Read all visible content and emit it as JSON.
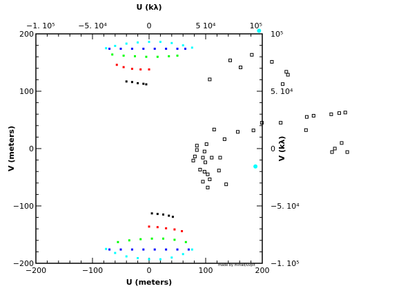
{
  "chart_data": [
    {
      "type": "scatter",
      "xlabel": "U (meters)",
      "ylabel": "V (meters)",
      "x2label": "U (kλ)",
      "y2label": "V (kλ)",
      "xlim": [
        -200,
        200
      ],
      "ylim": [
        -200,
        200
      ],
      "x_ticks": [
        -200,
        -100,
        0,
        100,
        200
      ],
      "y_ticks": [
        -200,
        -100,
        0,
        100,
        200
      ],
      "x_tick_labels": [
        "−200",
        "−100",
        "0",
        "100",
        "200"
      ],
      "y_tick_labels": [
        "−200",
        "−100",
        "0",
        "100",
        "200"
      ],
      "x2lim": [
        -100000,
        100000
      ],
      "y2lim": [
        -100000,
        100000
      ],
      "x2_ticks": [
        -100000,
        -50000,
        0,
        50000,
        100000
      ],
      "y2_ticks": [
        -100000,
        -50000,
        0,
        50000,
        100000
      ],
      "x2_tick_labels": [
        "−1. 10⁵",
        "−5. 10⁴",
        "0",
        "5 10⁴",
        "10⁵"
      ],
      "y2_tick_labels": [
        "−1. 10⁵",
        "−5. 10⁴",
        "0",
        "5. 10⁴",
        "10⁵"
      ],
      "credit": "made by miriad/uvplt",
      "grid": false,
      "series": [
        {
          "color": "#00ffff",
          "points": [
            [
              -76,
              175
            ],
            [
              -60,
              179
            ],
            [
              -40,
              183
            ],
            [
              -20,
              185
            ],
            [
              0,
              186
            ],
            [
              20,
              186
            ],
            [
              40,
              184
            ],
            [
              60,
              180
            ],
            [
              76,
              176
            ],
            [
              -76,
              -175
            ],
            [
              -60,
              -182
            ],
            [
              -40,
              -188
            ],
            [
              -20,
              -191
            ],
            [
              0,
              -193
            ],
            [
              20,
              -193
            ],
            [
              40,
              -190
            ],
            [
              60,
              -184
            ],
            [
              76,
              -176
            ]
          ]
        },
        {
          "color": "#0000ff",
          "points": [
            [
              -70,
              174
            ],
            [
              -50,
              174
            ],
            [
              -30,
              174
            ],
            [
              -10,
              174
            ],
            [
              10,
              174
            ],
            [
              30,
              174
            ],
            [
              50,
              174
            ],
            [
              64,
              174
            ],
            [
              -70,
              -176
            ],
            [
              -50,
              -176
            ],
            [
              -30,
              -176
            ],
            [
              -10,
              -176
            ],
            [
              10,
              -176
            ],
            [
              30,
              -176
            ],
            [
              50,
              -176
            ],
            [
              70,
              -176
            ]
          ]
        },
        {
          "color": "#00ff00",
          "points": [
            [
              -65,
              164
            ],
            [
              -45,
              162
            ],
            [
              -25,
              161
            ],
            [
              -5,
              160
            ],
            [
              15,
              160
            ],
            [
              35,
              161
            ],
            [
              50,
              162
            ],
            [
              -55,
              -163
            ],
            [
              -35,
              -160
            ],
            [
              -15,
              -158
            ],
            [
              5,
              -157
            ],
            [
              25,
              -157
            ],
            [
              45,
              -159
            ],
            [
              65,
              -163
            ]
          ]
        },
        {
          "color": "#ff0000",
          "points": [
            [
              -57,
              146
            ],
            [
              -45,
              142
            ],
            [
              -30,
              139
            ],
            [
              -15,
              138
            ],
            [
              0,
              138
            ],
            [
              0,
              -136
            ],
            [
              15,
              -137
            ],
            [
              30,
              -139
            ],
            [
              45,
              -141
            ],
            [
              58,
              -144
            ]
          ]
        },
        {
          "color": "#000000",
          "points": [
            [
              -40,
              117
            ],
            [
              -30,
              116
            ],
            [
              -20,
              114
            ],
            [
              -10,
              113
            ],
            [
              -5,
              112
            ],
            [
              5,
              -113
            ],
            [
              15,
              -114
            ],
            [
              25,
              -115
            ],
            [
              35,
              -117
            ],
            [
              42,
              -119
            ]
          ]
        }
      ]
    },
    {
      "type": "scatter",
      "series": [
        {
          "color": "#00ffff",
          "points": [
            [
              0.646,
              0.895
            ],
            [
              0.637,
              0.432
            ]
          ]
        },
        {
          "color": "#000000",
          "points": [
            [
              0.574,
              0.794
            ],
            [
              0.628,
              0.813
            ],
            [
              0.678,
              0.789
            ],
            [
              0.714,
              0.755
            ],
            [
              0.718,
              0.745
            ],
            [
              0.6,
              0.77
            ],
            [
              0.705,
              0.713
            ],
            [
              0.523,
              0.729
            ],
            [
              0.7,
              0.581
            ],
            [
              0.653,
              0.581
            ],
            [
              0.765,
              0.601
            ],
            [
              0.782,
              0.605
            ],
            [
              0.826,
              0.61
            ],
            [
              0.846,
              0.614
            ],
            [
              0.861,
              0.616
            ],
            [
              0.593,
              0.55
            ],
            [
              0.632,
              0.555
            ],
            [
              0.534,
              0.558
            ],
            [
              0.56,
              0.525
            ],
            [
              0.515,
              0.508
            ],
            [
              0.491,
              0.503
            ],
            [
              0.491,
              0.488
            ],
            [
              0.51,
              0.483
            ],
            [
              0.486,
              0.466
            ],
            [
              0.506,
              0.462
            ],
            [
              0.528,
              0.462
            ],
            [
              0.549,
              0.462
            ],
            [
              0.482,
              0.452
            ],
            [
              0.512,
              0.446
            ],
            [
              0.546,
              0.418
            ],
            [
              0.499,
              0.421
            ],
            [
              0.51,
              0.414
            ],
            [
              0.518,
              0.405
            ],
            [
              0.523,
              0.388
            ],
            [
              0.506,
              0.38
            ],
            [
              0.518,
              0.36
            ],
            [
              0.564,
              0.371
            ],
            [
              0.763,
              0.556
            ],
            [
              0.852,
              0.512
            ],
            [
              0.835,
              0.493
            ],
            [
              0.866,
              0.481
            ],
            [
              0.828,
              0.481
            ]
          ]
        }
      ]
    }
  ]
}
